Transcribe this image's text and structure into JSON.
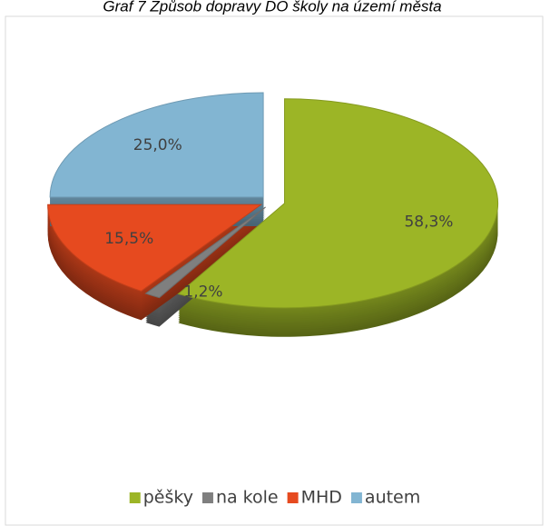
{
  "chart_data": {
    "type": "pie",
    "title": "Graf 7 Způsob dopravy DO školy na území města",
    "categories": [
      "pěšky",
      "na kole",
      "MHD",
      "autem"
    ],
    "values": [
      58.3,
      1.2,
      15.5,
      25.0
    ],
    "value_labels": [
      "58,3%",
      "1,2%",
      "15,5%",
      "25,0%"
    ],
    "colors": [
      "#9cb526",
      "#7f7f7f",
      "#e64a1f",
      "#82b5d2"
    ],
    "legend": "bottom"
  }
}
